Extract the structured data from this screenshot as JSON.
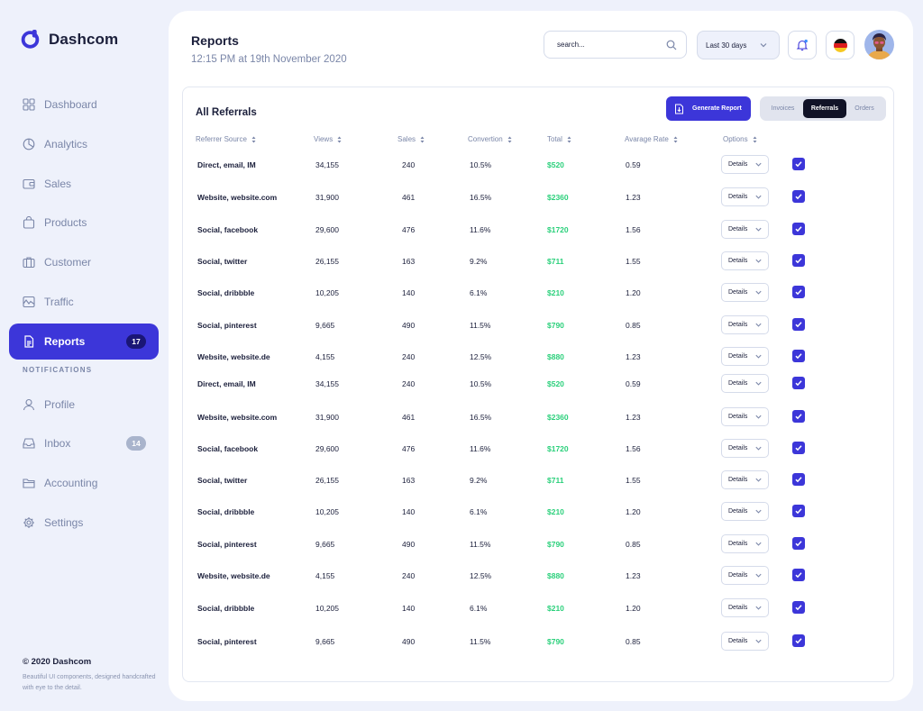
{
  "brand": {
    "name": "Dashcom"
  },
  "sidebar": {
    "items": [
      {
        "label": "Dashboard",
        "icon": "grid-icon"
      },
      {
        "label": "Analytics",
        "icon": "pie-chart-icon"
      },
      {
        "label": "Sales",
        "icon": "wallet-icon"
      },
      {
        "label": "Products",
        "icon": "shopping-bag-icon"
      },
      {
        "label": "Customer",
        "icon": "briefcase-icon"
      },
      {
        "label": "Traffic",
        "icon": "activity-icon"
      },
      {
        "label": "Reports",
        "icon": "document-icon",
        "badge": "17",
        "active": true
      }
    ],
    "section_label": "NOTIFICATIONS",
    "items2": [
      {
        "label": "Profile",
        "icon": "user-icon"
      },
      {
        "label": "Inbox",
        "icon": "inbox-icon",
        "badge": "14"
      },
      {
        "label": "Accounting",
        "icon": "folder-icon"
      },
      {
        "label": "Settings",
        "icon": "gear-icon"
      }
    ],
    "footer_title": "© 2020 Dashcom",
    "footer_desc": "Beautiful UI components, designed handcrafted with eye to the detail."
  },
  "header": {
    "title": "Reports",
    "subtitle": "12:15 PM at 19th November 2020",
    "search_placeholder": "search...",
    "date_range": "Last 30 days"
  },
  "card": {
    "title": "All Referrals",
    "generate_label": "Generate Report",
    "tabs": [
      "Invoices",
      "Referrals",
      "Orders"
    ],
    "active_tab": "Referrals",
    "columns": [
      "Referrer Source",
      "Views",
      "Sales",
      "Convertion",
      "Total",
      "Avarage Rate",
      "Options"
    ],
    "details_label": "Details",
    "rows": [
      {
        "source": "Direct, email, IM",
        "views": "34,155",
        "sales": "240",
        "conversion": "10.5%",
        "total": "$520",
        "rate": "0.59"
      },
      {
        "source": "Website, website.com",
        "views": "31,900",
        "sales": "461",
        "conversion": "16.5%",
        "total": "$2360",
        "rate": "1.23"
      },
      {
        "source": "Social, facebook",
        "views": "29,600",
        "sales": "476",
        "conversion": "11.6%",
        "total": "$1720",
        "rate": "1.56"
      },
      {
        "source": "Social, twitter",
        "views": "26,155",
        "sales": "163",
        "conversion": "9.2%",
        "total": "$711",
        "rate": "1.55"
      },
      {
        "source": "Social, dribbble",
        "views": "10,205",
        "sales": "140",
        "conversion": "6.1%",
        "total": "$210",
        "rate": "1.20"
      },
      {
        "source": "Social, pinterest",
        "views": "9,665",
        "sales": "490",
        "conversion": "11.5%",
        "total": "$790",
        "rate": "0.85"
      },
      {
        "source": "Website, website.de",
        "views": "4,155",
        "sales": "240",
        "conversion": "12.5%",
        "total": "$880",
        "rate": "1.23"
      },
      {
        "source": "Direct, email, IM",
        "views": "34,155",
        "sales": "240",
        "conversion": "10.5%",
        "total": "$520",
        "rate": "0.59"
      },
      {
        "source": "Website, website.com",
        "views": "31,900",
        "sales": "461",
        "conversion": "16.5%",
        "total": "$2360",
        "rate": "1.23"
      },
      {
        "source": "Social, facebook",
        "views": "29,600",
        "sales": "476",
        "conversion": "11.6%",
        "total": "$1720",
        "rate": "1.56"
      },
      {
        "source": "Social, twitter",
        "views": "26,155",
        "sales": "163",
        "conversion": "9.2%",
        "total": "$711",
        "rate": "1.55"
      },
      {
        "source": "Social, dribbble",
        "views": "10,205",
        "sales": "140",
        "conversion": "6.1%",
        "total": "$210",
        "rate": "1.20"
      },
      {
        "source": "Social, pinterest",
        "views": "9,665",
        "sales": "490",
        "conversion": "11.5%",
        "total": "$790",
        "rate": "0.85"
      },
      {
        "source": "Website, website.de",
        "views": "4,155",
        "sales": "240",
        "conversion": "12.5%",
        "total": "$880",
        "rate": "1.23"
      },
      {
        "source": "Social, dribbble",
        "views": "10,205",
        "sales": "140",
        "conversion": "6.1%",
        "total": "$210",
        "rate": "1.20"
      },
      {
        "source": "Social, pinterest",
        "views": "9,665",
        "sales": "490",
        "conversion": "11.5%",
        "total": "$790",
        "rate": "0.85"
      }
    ]
  },
  "colors": {
    "accent": "#3c36d9",
    "positive": "#2bd07b",
    "muted": "#7a86a8",
    "background": "#eef1fb"
  }
}
